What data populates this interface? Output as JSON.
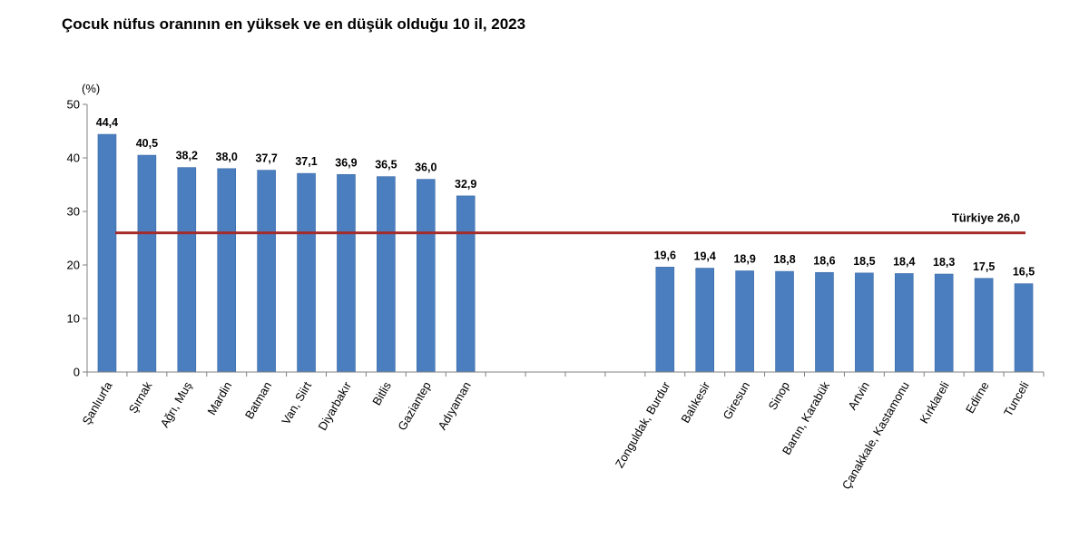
{
  "chart_data": {
    "type": "bar",
    "title": "Çocuk nüfus oranının en yüksek ve en düşük olduğu 10 il, 2023",
    "ylabel": "(%)",
    "ylim": [
      0,
      50
    ],
    "yticks": [
      0,
      10,
      20,
      30,
      40,
      50
    ],
    "grid": false,
    "categories": [
      "Şanlıurfa",
      "Şırnak",
      "Ağrı, Muş",
      "Mardin",
      "Batman",
      "Van, Siirt",
      "Diyarbakır",
      "Bitlis",
      "Gaziantep",
      "Adıyaman",
      "",
      "",
      "",
      "",
      "Zonguldak, Burdur",
      "Balıkesir",
      "Giresun",
      "Sinop",
      "Bartın, Karabük",
      "Artvin",
      "Çanakkale, Kastamonu",
      "Kırklareli",
      "Edirne",
      "Tunceli"
    ],
    "values": [
      44.4,
      40.5,
      38.2,
      38.0,
      37.7,
      37.1,
      36.9,
      36.5,
      36.0,
      32.9,
      null,
      null,
      null,
      null,
      19.6,
      19.4,
      18.9,
      18.8,
      18.6,
      18.5,
      18.4,
      18.3,
      17.5,
      16.5
    ],
    "value_labels": [
      "44,4",
      "40,5",
      "38,2",
      "38,0",
      "37,7",
      "37,1",
      "36,9",
      "36,5",
      "36,0",
      "32,9",
      "",
      "",
      "",
      "",
      "19,6",
      "19,4",
      "18,9",
      "18,8",
      "18,6",
      "18,5",
      "18,4",
      "18,3",
      "17,5",
      "16,5"
    ],
    "reference_line": {
      "value": 26.0,
      "label": "Türkiye 26,0"
    },
    "colors": {
      "bar": "#4a7ebf",
      "bar_edge": "#3a6aa6",
      "reference_line": "#a52a2a",
      "axis": "#808080"
    }
  }
}
